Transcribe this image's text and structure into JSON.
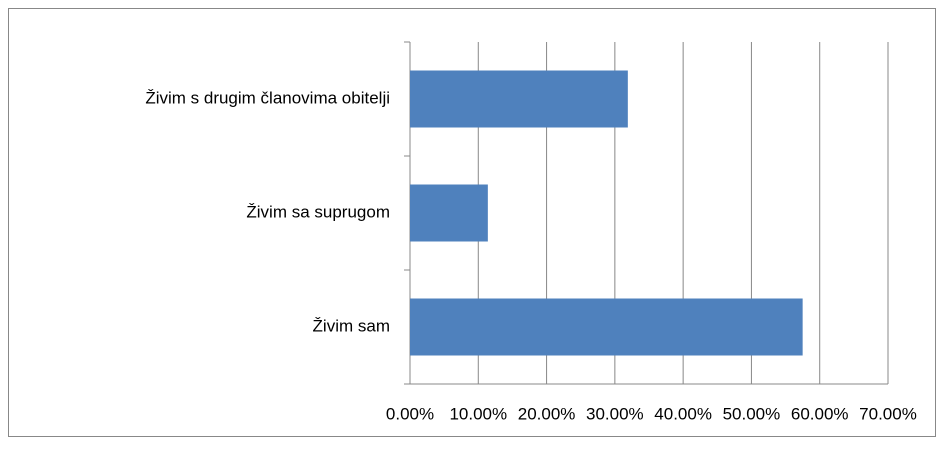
{
  "chart_data": {
    "type": "bar",
    "orientation": "horizontal",
    "categories": [
      "Živim s drugim članovima obitelji",
      "Živim sa suprugom",
      "Živim sam"
    ],
    "values": [
      31.9,
      11.4,
      57.5
    ],
    "color": "#4f81bd",
    "xlim": [
      0,
      70
    ],
    "xticks": [
      {
        "value": 0,
        "label": "0.00%"
      },
      {
        "value": 10,
        "label": "10.00%"
      },
      {
        "value": 20,
        "label": "20.00%"
      },
      {
        "value": 30,
        "label": "30.00%"
      },
      {
        "value": 40,
        "label": "40.00%"
      },
      {
        "value": 50,
        "label": "50.00%"
      },
      {
        "value": 60,
        "label": "60.00%"
      },
      {
        "value": 70,
        "label": "70.00%"
      }
    ],
    "grid": true
  }
}
